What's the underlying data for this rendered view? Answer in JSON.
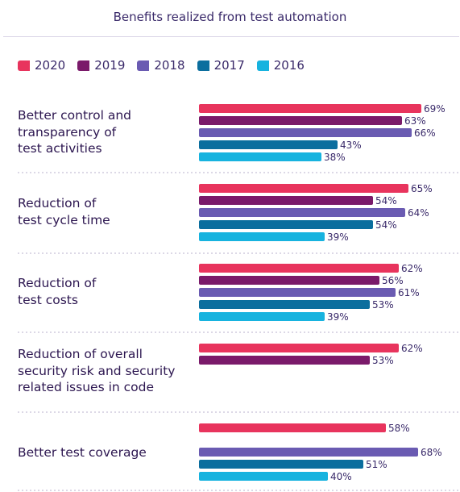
{
  "chart_data": {
    "type": "bar",
    "orientation": "horizontal",
    "title": "Benefits realized from test automation",
    "legend_position": "top",
    "xlim": [
      0,
      70
    ],
    "series": [
      {
        "name": "2020",
        "color": "#e8345d"
      },
      {
        "name": "2019",
        "color": "#7a1a6a"
      },
      {
        "name": "2018",
        "color": "#6a5bb2"
      },
      {
        "name": "2017",
        "color": "#0b6e9e"
      },
      {
        "name": "2016",
        "color": "#17b3df"
      }
    ],
    "groups": [
      {
        "category": "Better control and\ntransparency of\ntest activities",
        "values": [
          69,
          63,
          66,
          43,
          38
        ],
        "labels": [
          "69%",
          "63%",
          "66%",
          "43%",
          "38%"
        ]
      },
      {
        "category": "Reduction of\ntest cycle time",
        "values": [
          65,
          54,
          64,
          54,
          39
        ],
        "labels": [
          "65%",
          "54%",
          "64%",
          "54%",
          "39%"
        ]
      },
      {
        "category": "Reduction of\ntest costs",
        "values": [
          62,
          56,
          61,
          53,
          39
        ],
        "labels": [
          "62%",
          "56%",
          "61%",
          "53%",
          "39%"
        ]
      },
      {
        "category": "Reduction of overall\nsecurity risk and security\nrelated issues in code",
        "values": [
          62,
          53,
          null,
          null,
          null
        ],
        "labels": [
          "62%",
          "53%",
          null,
          null,
          null
        ]
      },
      {
        "category": "Better test coverage",
        "values": [
          58,
          null,
          68,
          51,
          40
        ],
        "labels": [
          "58%",
          null,
          "68%",
          "51%",
          "40%"
        ]
      }
    ]
  }
}
